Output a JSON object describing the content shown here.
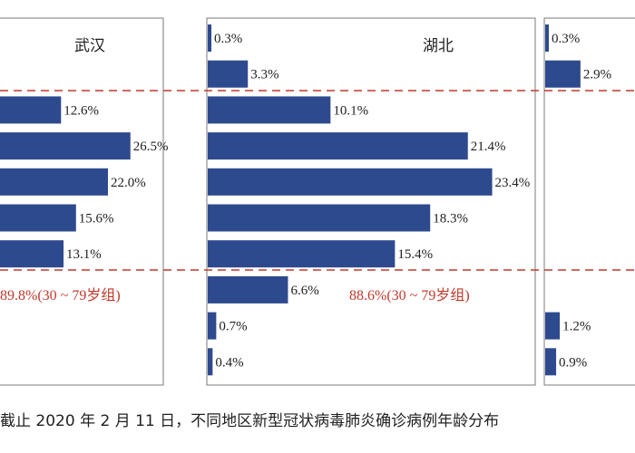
{
  "chart_data": [
    {
      "type": "bar",
      "title": "武汉",
      "values": [
        null,
        null,
        12.6,
        26.5,
        22.0,
        15.6,
        13.1,
        null,
        null,
        null
      ],
      "value_labels": [
        "",
        "",
        "12.6%",
        "26.5%",
        "22.0%",
        "15.6%",
        "13.1%",
        "",
        "",
        ""
      ],
      "annotation": "89.8%(30 ~ 79岁组)"
    },
    {
      "type": "bar",
      "title": "湖北",
      "values": [
        0.3,
        3.3,
        10.1,
        21.4,
        23.4,
        18.3,
        15.4,
        6.6,
        0.7,
        0.4
      ],
      "value_labels": [
        "0.3%",
        "3.3%",
        "10.1%",
        "21.4%",
        "23.4%",
        "18.3%",
        "15.4%",
        "6.6%",
        "0.7%",
        "0.4%"
      ],
      "annotation": "88.6%(30 ~ 79岁组)"
    },
    {
      "type": "bar",
      "title": "",
      "values": [
        0.3,
        2.9,
        null,
        null,
        null,
        null,
        null,
        null,
        1.2,
        0.9
      ],
      "value_labels": [
        "0.3%",
        "2.9%",
        "",
        "",
        "",
        "",
        "",
        "",
        "1.2%",
        "0.9%"
      ],
      "annotation": ""
    }
  ],
  "caption": "截止 2020 年 2 月 11 日，不同地区新型冠状病毒肺炎确诊病例年龄分布",
  "colors": {
    "bar": "#2e4a8f",
    "dashed": "#c0392b",
    "frame": "#7a7a7a"
  }
}
